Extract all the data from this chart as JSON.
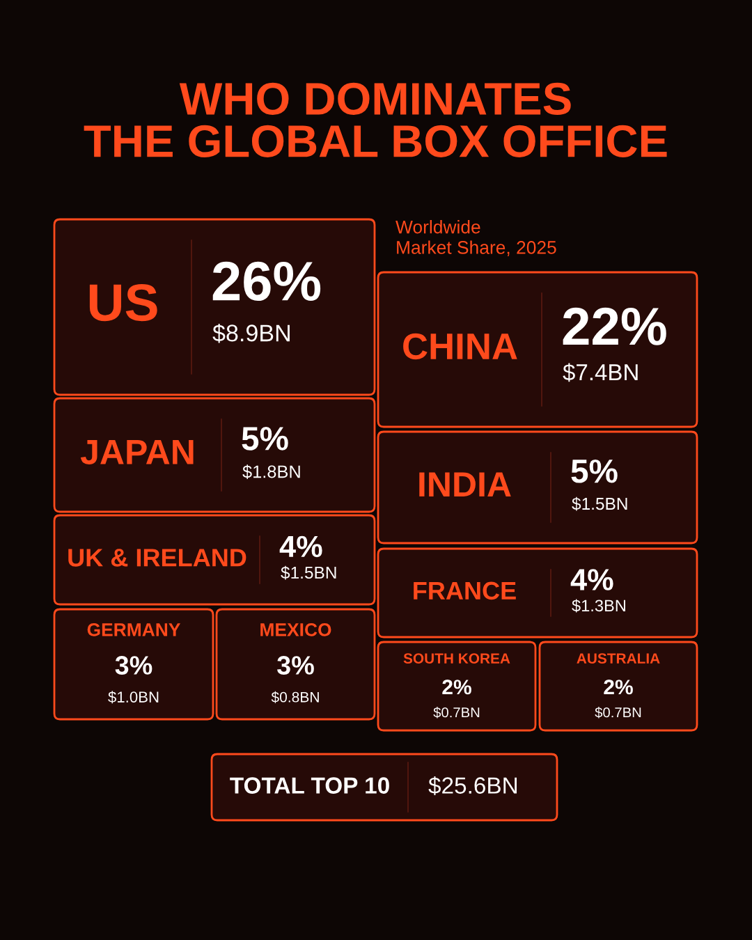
{
  "chart_data": {
    "type": "other",
    "title": "WHO DOMINATES\nTHE GLOBAL BOX OFFICE",
    "subtitle": "Worldwide\nMarket Share, 2025",
    "categories": [
      "US",
      "CHINA",
      "JAPAN",
      "INDIA",
      "UK & IRELAND",
      "FRANCE",
      "GERMANY",
      "MEXICO",
      "SOUTH KOREA",
      "AUSTRALIA"
    ],
    "series": [
      {
        "values": [
          26,
          22,
          5,
          5,
          4,
          4,
          3,
          3,
          2,
          2
        ],
        "value_labels": [
          "26%",
          "22%",
          "5%",
          "5%",
          "4%",
          "4%",
          "3%",
          "3%",
          "2%",
          "2%"
        ]
      },
      {
        "values": [
          8.9,
          7.4,
          1.8,
          1.5,
          1.5,
          1.3,
          1.0,
          0.8,
          0.7,
          0.7
        ],
        "value_labels": [
          "$8.9BN",
          "$7.4BN",
          "$1.8BN",
          "$1.5BN",
          "$1.5BN",
          "$1.3BN",
          "$1.0BN",
          "$0.8BN",
          "$0.7BN",
          "$0.7BN"
        ]
      }
    ],
    "color": "#ff4a1c",
    "annotations": [
      "TOTAL TOP 10",
      "$25.6BN"
    ]
  }
}
